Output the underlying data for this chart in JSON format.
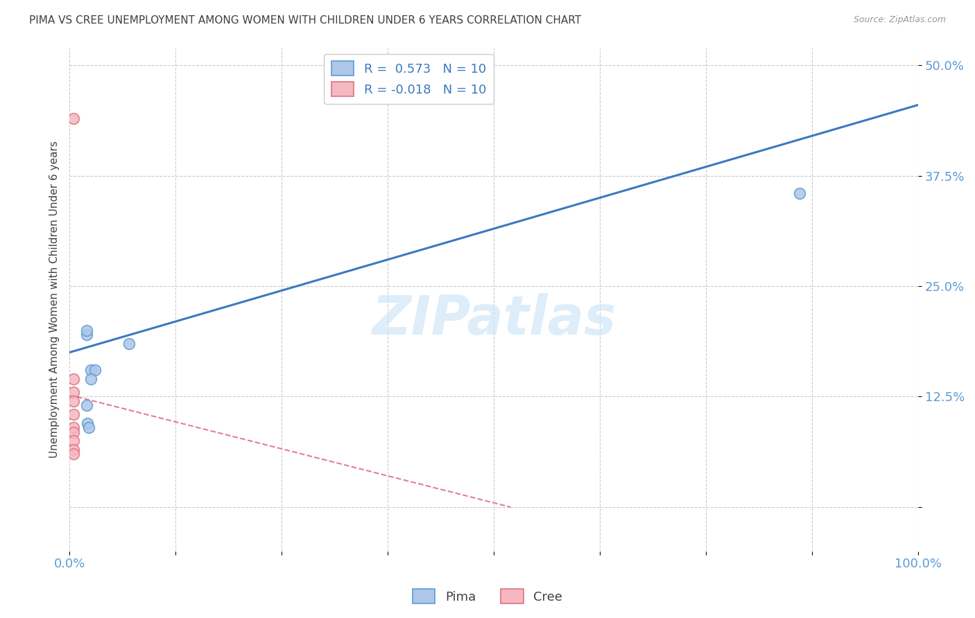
{
  "title": "PIMA VS CREE UNEMPLOYMENT AMONG WOMEN WITH CHILDREN UNDER 6 YEARS CORRELATION CHART",
  "source": "Source: ZipAtlas.com",
  "ylabel": "Unemployment Among Women with Children Under 6 years",
  "watermark": "ZIPatlas",
  "pima_x": [
    0.02,
    0.07,
    0.02,
    0.025,
    0.03,
    0.025,
    0.02,
    0.021,
    0.023,
    0.86
  ],
  "pima_y": [
    0.195,
    0.185,
    0.2,
    0.155,
    0.155,
    0.145,
    0.115,
    0.095,
    0.09,
    0.355
  ],
  "cree_x": [
    0.005,
    0.005,
    0.005,
    0.005,
    0.005,
    0.005,
    0.005,
    0.005,
    0.005,
    0.005
  ],
  "cree_y": [
    0.44,
    0.145,
    0.13,
    0.12,
    0.105,
    0.09,
    0.085,
    0.075,
    0.065,
    0.06
  ],
  "pima_color": "#aec6e8",
  "pima_edge_color": "#5b9bd5",
  "cree_color": "#f4b8c1",
  "cree_edge_color": "#e07080",
  "pima_line_color": "#3a7abf",
  "cree_line_color": "#e08090",
  "pima_R": 0.573,
  "cree_R": -0.018,
  "pima_N": 10,
  "cree_N": 10,
  "pima_line_x0": 0.0,
  "pima_line_y0": 0.175,
  "pima_line_x1": 1.0,
  "pima_line_y1": 0.455,
  "cree_line_x0": 0.0,
  "cree_line_y0": 0.127,
  "cree_line_x1": 0.52,
  "cree_line_y1": 0.0,
  "xlim": [
    0.0,
    1.0
  ],
  "ylim": [
    -0.05,
    0.52
  ],
  "yticks": [
    0.0,
    0.125,
    0.25,
    0.375,
    0.5
  ],
  "ytick_labels": [
    "",
    "12.5%",
    "25.0%",
    "37.5%",
    "50.0%"
  ],
  "xticks": [
    0.0,
    0.125,
    0.25,
    0.375,
    0.5,
    0.625,
    0.75,
    0.875,
    1.0
  ],
  "xtick_labels": [
    "0.0%",
    "",
    "",
    "",
    "",
    "",
    "",
    "",
    "100.0%"
  ],
  "grid_color": "#cccccc",
  "bg_color": "#ffffff",
  "title_color": "#404040",
  "axis_color": "#5b9bd5",
  "marker_size": 130,
  "legend_pima_label": "R =  0.573   N = 10",
  "legend_cree_label": "R = -0.018   N = 10",
  "bottom_legend_pima": "Pima",
  "bottom_legend_cree": "Cree"
}
